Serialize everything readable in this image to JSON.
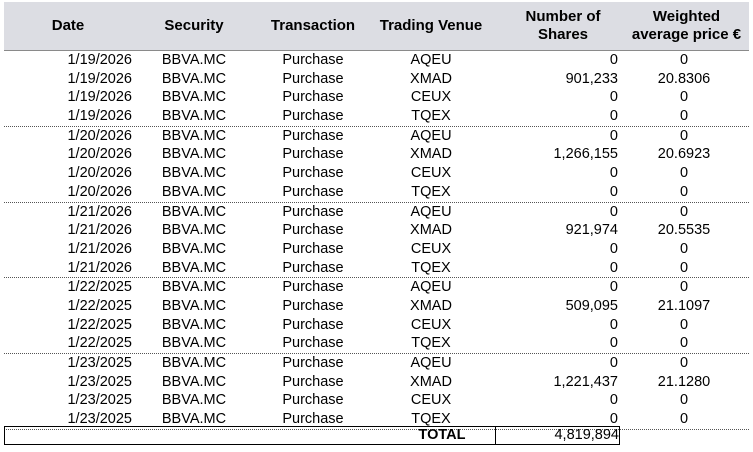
{
  "headers": {
    "date": "Date",
    "security": "Security",
    "transaction": "Transaction",
    "venue": "Trading Venue",
    "shares_line1": "Number of",
    "shares_line2": "Shares",
    "price_line1": "Weighted",
    "price_line2": "average price €"
  },
  "groups": [
    {
      "rows": [
        {
          "date": "1/19/2026",
          "security": "BBVA.MC",
          "transaction": "Purchase",
          "venue": "AQEU",
          "shares": "0",
          "price": "0"
        },
        {
          "date": "1/19/2026",
          "security": "BBVA.MC",
          "transaction": "Purchase",
          "venue": "XMAD",
          "shares": "901,233",
          "price": "20.8306"
        },
        {
          "date": "1/19/2026",
          "security": "BBVA.MC",
          "transaction": "Purchase",
          "venue": "CEUX",
          "shares": "0",
          "price": "0"
        },
        {
          "date": "1/19/2026",
          "security": "BBVA.MC",
          "transaction": "Purchase",
          "venue": "TQEX",
          "shares": "0",
          "price": "0"
        }
      ]
    },
    {
      "rows": [
        {
          "date": "1/20/2026",
          "security": "BBVA.MC",
          "transaction": "Purchase",
          "venue": "AQEU",
          "shares": "0",
          "price": "0"
        },
        {
          "date": "1/20/2026",
          "security": "BBVA.MC",
          "transaction": "Purchase",
          "venue": "XMAD",
          "shares": "1,266,155",
          "price": "20.6923"
        },
        {
          "date": "1/20/2026",
          "security": "BBVA.MC",
          "transaction": "Purchase",
          "venue": "CEUX",
          "shares": "0",
          "price": "0"
        },
        {
          "date": "1/20/2026",
          "security": "BBVA.MC",
          "transaction": "Purchase",
          "venue": "TQEX",
          "shares": "0",
          "price": "0"
        }
      ]
    },
    {
      "rows": [
        {
          "date": "1/21/2026",
          "security": "BBVA.MC",
          "transaction": "Purchase",
          "venue": "AQEU",
          "shares": "0",
          "price": "0"
        },
        {
          "date": "1/21/2026",
          "security": "BBVA.MC",
          "transaction": "Purchase",
          "venue": "XMAD",
          "shares": "921,974",
          "price": "20.5535"
        },
        {
          "date": "1/21/2026",
          "security": "BBVA.MC",
          "transaction": "Purchase",
          "venue": "CEUX",
          "shares": "0",
          "price": "0"
        },
        {
          "date": "1/21/2026",
          "security": "BBVA.MC",
          "transaction": "Purchase",
          "venue": "TQEX",
          "shares": "0",
          "price": "0"
        }
      ]
    },
    {
      "rows": [
        {
          "date": "1/22/2025",
          "security": "BBVA.MC",
          "transaction": "Purchase",
          "venue": "AQEU",
          "shares": "0",
          "price": "0"
        },
        {
          "date": "1/22/2025",
          "security": "BBVA.MC",
          "transaction": "Purchase",
          "venue": "XMAD",
          "shares": "509,095",
          "price": "21.1097"
        },
        {
          "date": "1/22/2025",
          "security": "BBVA.MC",
          "transaction": "Purchase",
          "venue": "CEUX",
          "shares": "0",
          "price": "0"
        },
        {
          "date": "1/22/2025",
          "security": "BBVA.MC",
          "transaction": "Purchase",
          "venue": "TQEX",
          "shares": "0",
          "price": "0"
        }
      ]
    },
    {
      "rows": [
        {
          "date": "1/23/2025",
          "security": "BBVA.MC",
          "transaction": "Purchase",
          "venue": "AQEU",
          "shares": "0",
          "price": "0"
        },
        {
          "date": "1/23/2025",
          "security": "BBVA.MC",
          "transaction": "Purchase",
          "venue": "XMAD",
          "shares": "1,221,437",
          "price": "21.1280"
        },
        {
          "date": "1/23/2025",
          "security": "BBVA.MC",
          "transaction": "Purchase",
          "venue": "CEUX",
          "shares": "0",
          "price": "0"
        },
        {
          "date": "1/23/2025",
          "security": "BBVA.MC",
          "transaction": "Purchase",
          "venue": "TQEX",
          "shares": "0",
          "price": "0"
        }
      ]
    }
  ],
  "total": {
    "label": "TOTAL",
    "value": "4,819,894"
  },
  "colors": {
    "header_bg": "#dcdde3"
  }
}
